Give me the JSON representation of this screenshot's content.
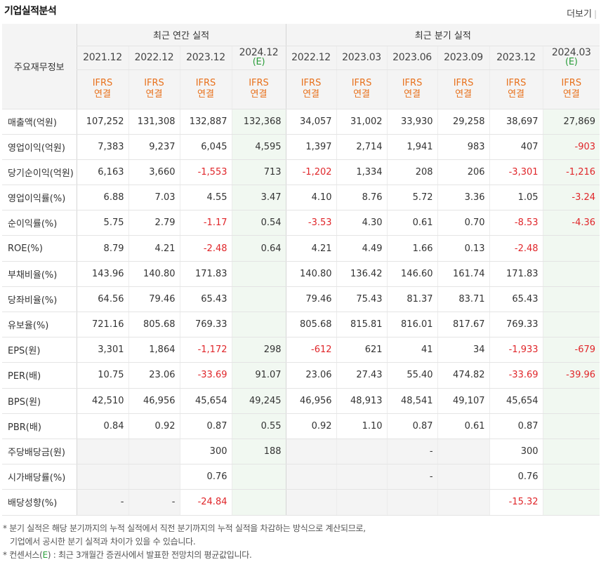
{
  "header": {
    "title": "기업실적분석",
    "more_label": "더보기"
  },
  "table": {
    "corner_label": "주요재무정보",
    "group_annual": "최근 연간 실적",
    "group_quarter": "최근 분기 실적",
    "periods": [
      {
        "label": "2021.12",
        "est": ""
      },
      {
        "label": "2022.12",
        "est": ""
      },
      {
        "label": "2023.12",
        "est": ""
      },
      {
        "label": "2024.12",
        "est": "(E)"
      },
      {
        "label": "2022.12",
        "est": ""
      },
      {
        "label": "2023.03",
        "est": ""
      },
      {
        "label": "2023.06",
        "est": ""
      },
      {
        "label": "2023.09",
        "est": ""
      },
      {
        "label": "2023.12",
        "est": ""
      },
      {
        "label": "2024.03",
        "est": "(E)"
      }
    ],
    "ifrs_top": "IFRS",
    "ifrs_bottom": "연결",
    "rows": [
      {
        "label": "매출액(억원)",
        "values": [
          "107,252",
          "131,308",
          "132,887",
          "132,368",
          "34,057",
          "31,002",
          "33,930",
          "29,258",
          "38,697",
          "27,869"
        ]
      },
      {
        "label": "영업이익(억원)",
        "values": [
          "7,383",
          "9,237",
          "6,045",
          "4,595",
          "1,397",
          "2,714",
          "1,941",
          "983",
          "407",
          "-903"
        ]
      },
      {
        "label": "당기순이익(억원)",
        "values": [
          "6,163",
          "3,660",
          "-1,553",
          "713",
          "-1,202",
          "1,334",
          "208",
          "206",
          "-3,301",
          "-1,216"
        ]
      },
      {
        "label": "영업이익률(%)",
        "values": [
          "6.88",
          "7.03",
          "4.55",
          "3.47",
          "4.10",
          "8.76",
          "5.72",
          "3.36",
          "1.05",
          "-3.24"
        ]
      },
      {
        "label": "순이익률(%)",
        "values": [
          "5.75",
          "2.79",
          "-1.17",
          "0.54",
          "-3.53",
          "4.30",
          "0.61",
          "0.70",
          "-8.53",
          "-4.36"
        ]
      },
      {
        "label": "ROE(%)",
        "values": [
          "8.79",
          "4.21",
          "-2.48",
          "0.64",
          "4.21",
          "4.49",
          "1.66",
          "0.13",
          "-2.48",
          ""
        ]
      },
      {
        "label": "부채비율(%)",
        "values": [
          "143.96",
          "140.80",
          "171.83",
          "",
          "140.80",
          "136.42",
          "146.60",
          "161.74",
          "171.83",
          ""
        ]
      },
      {
        "label": "당좌비율(%)",
        "values": [
          "64.56",
          "79.46",
          "65.43",
          "",
          "79.46",
          "75.43",
          "81.37",
          "83.71",
          "65.43",
          ""
        ]
      },
      {
        "label": "유보율(%)",
        "values": [
          "721.16",
          "805.68",
          "769.33",
          "",
          "805.68",
          "815.81",
          "816.01",
          "817.67",
          "769.33",
          ""
        ]
      },
      {
        "label": "EPS(원)",
        "values": [
          "3,301",
          "1,864",
          "-1,172",
          "298",
          "-612",
          "621",
          "41",
          "34",
          "-1,933",
          "-679"
        ]
      },
      {
        "label": "PER(배)",
        "values": [
          "10.75",
          "23.06",
          "-33.69",
          "91.07",
          "23.06",
          "27.43",
          "55.40",
          "474.82",
          "-33.69",
          "-39.96"
        ]
      },
      {
        "label": "BPS(원)",
        "values": [
          "42,510",
          "46,956",
          "45,654",
          "49,245",
          "46,956",
          "48,913",
          "48,541",
          "49,107",
          "45,654",
          ""
        ]
      },
      {
        "label": "PBR(배)",
        "values": [
          "0.84",
          "0.92",
          "0.87",
          "0.55",
          "0.92",
          "1.10",
          "0.87",
          "0.61",
          "0.87",
          ""
        ]
      },
      {
        "label": "주당배당금(원)",
        "values": [
          "",
          "",
          "300",
          "188",
          "",
          "",
          "-",
          "",
          "300",
          ""
        ]
      },
      {
        "label": "시가배당률(%)",
        "values": [
          "",
          "",
          "0.76",
          "",
          "",
          "",
          "-",
          "",
          "0.76",
          ""
        ]
      },
      {
        "label": "배당성향(%)",
        "values": [
          "-",
          "-",
          "-24.84",
          "",
          "",
          "",
          "",
          "",
          "-15.32",
          ""
        ]
      }
    ]
  },
  "notes": {
    "line1": "* 분기 실적은 해당 분기까지의 누적 실적에서 직전 분기까지의 누적 실적을 차감하는 방식으로 계산되므로,",
    "line2": "기업에서 공시한 분기 실적과 차이가 있을 수 있습니다.",
    "line3_prefix": "* 컨센서스(",
    "line3_e": "E",
    "line3_suffix": ") : 최근 3개월간 증권사에서 발표한 전망치의 평균값입니다."
  },
  "colors": {
    "negative": "#e0262a",
    "ifrs": "#e8711c",
    "estimate": "#2a9d3a",
    "estimate_bg": "#f1f8f1",
    "header_bg": "#f4f4f4"
  }
}
